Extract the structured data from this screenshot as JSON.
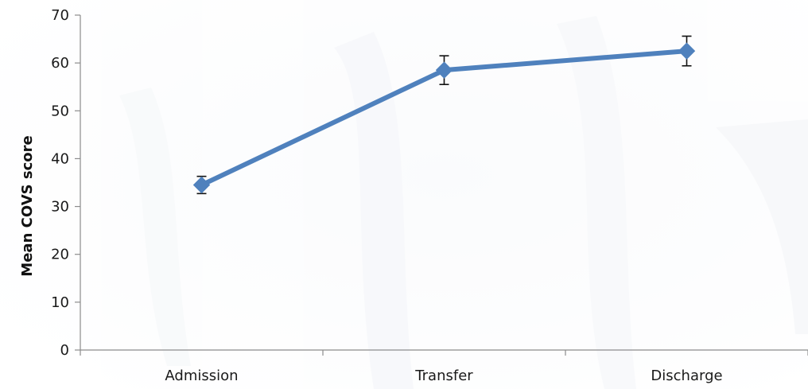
{
  "chart_data": {
    "type": "line",
    "title": "",
    "xlabel": "",
    "ylabel": "Mean COVS score",
    "categories": [
      "Admission",
      "Transfer",
      "Discharge"
    ],
    "ylim": [
      0,
      70
    ],
    "yticks": [
      0,
      10,
      20,
      30,
      40,
      50,
      60,
      70
    ],
    "grid": false,
    "legend": "none",
    "series": [
      {
        "values": [
          34.5,
          58.5,
          62.5
        ],
        "error": [
          1.8,
          3.0,
          3.1
        ],
        "color": "#4f81bd",
        "marker": "diamond"
      }
    ]
  }
}
